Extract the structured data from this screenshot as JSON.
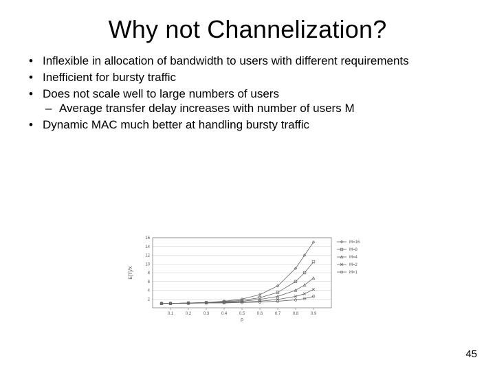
{
  "title": "Why not Channelization?",
  "bullets": {
    "b1": "Inflexible in allocation of bandwidth to users with different requirements",
    "b2": "Inefficient for bursty traffic",
    "b3": "Does not scale well to large numbers of users",
    "b3sub1": "Average transfer delay increases with number of users M",
    "b4": "Dynamic MAC much better at handling bursty traffic"
  },
  "pageNumber": "45",
  "chart": {
    "type": "line",
    "background_color": "#ffffff",
    "axis_color": "#555555",
    "grid_color": "#cccccc",
    "text_color": "#555555",
    "tick_fontsize": 6,
    "label_fontsize": 7,
    "legend_fontsize": 6,
    "xlabel": "ρ",
    "ylabel": "E[T]/X",
    "xlim": [
      0,
      1
    ],
    "ylim": [
      0,
      16
    ],
    "xticks": [
      0.1,
      0.2,
      0.3,
      0.4,
      0.5,
      0.6,
      0.7,
      0.8,
      0.9
    ],
    "yticks": [
      2,
      4,
      6,
      8,
      10,
      12,
      14,
      16
    ],
    "x": [
      0.05,
      0.1,
      0.2,
      0.3,
      0.4,
      0.5,
      0.6,
      0.7,
      0.8,
      0.85,
      0.9
    ],
    "series": [
      {
        "label": "M=16",
        "marker": "diamond",
        "color": "#666666",
        "y": [
          1.0,
          1.0,
          1.1,
          1.2,
          1.5,
          2.0,
          3.0,
          5.0,
          9.0,
          12.0,
          15.0
        ]
      },
      {
        "label": "M=8",
        "marker": "square",
        "color": "#666666",
        "y": [
          1.0,
          1.0,
          1.1,
          1.2,
          1.4,
          1.7,
          2.3,
          3.5,
          6.0,
          8.0,
          10.5
        ]
      },
      {
        "label": "M=4",
        "marker": "triangle",
        "color": "#666666",
        "y": [
          1.0,
          1.0,
          1.1,
          1.2,
          1.3,
          1.5,
          1.9,
          2.6,
          4.0,
          5.2,
          6.8
        ]
      },
      {
        "label": "M=2",
        "marker": "x",
        "color": "#666666",
        "y": [
          1.0,
          1.0,
          1.1,
          1.1,
          1.2,
          1.3,
          1.5,
          1.9,
          2.6,
          3.2,
          4.2
        ]
      },
      {
        "label": "M=1",
        "marker": "circle",
        "color": "#666666",
        "y": [
          1.0,
          1.0,
          1.0,
          1.1,
          1.1,
          1.2,
          1.3,
          1.5,
          1.8,
          2.1,
          2.6
        ]
      }
    ],
    "legend_position": "right",
    "line_width": 0.8
  }
}
